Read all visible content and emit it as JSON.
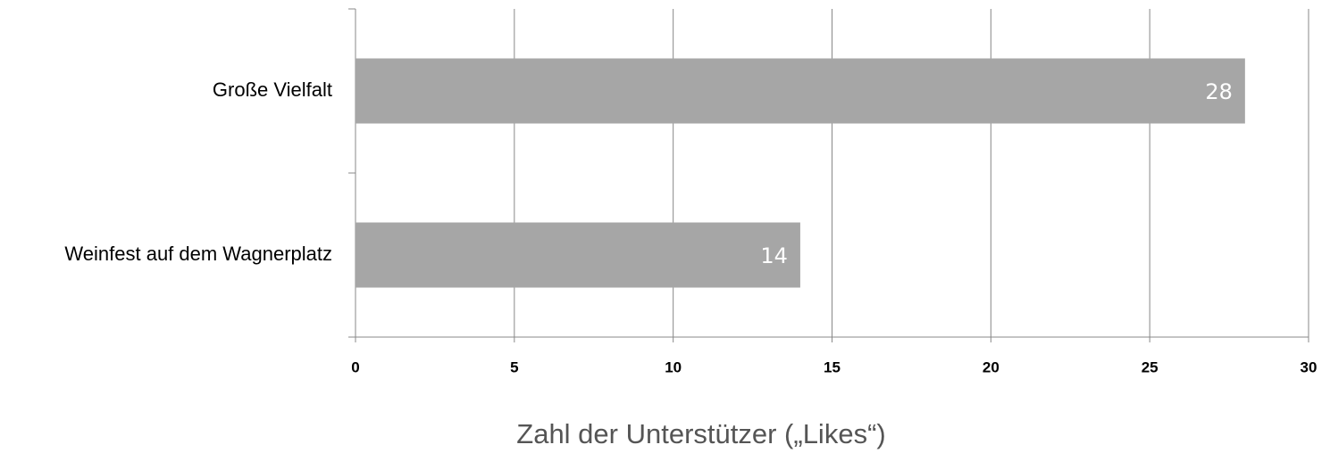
{
  "chart_data": {
    "type": "bar",
    "orientation": "horizontal",
    "categories": [
      "Große Vielfalt",
      "Weinfest auf dem Wagnerplatz"
    ],
    "values": [
      28,
      14
    ],
    "color": "#a6a6a6",
    "xlim": [
      0,
      30
    ],
    "xticks": [
      0,
      5,
      10,
      15,
      20,
      25,
      30
    ],
    "grid": true,
    "x_label": "Zahl der Unterstützer („Likes“)"
  }
}
